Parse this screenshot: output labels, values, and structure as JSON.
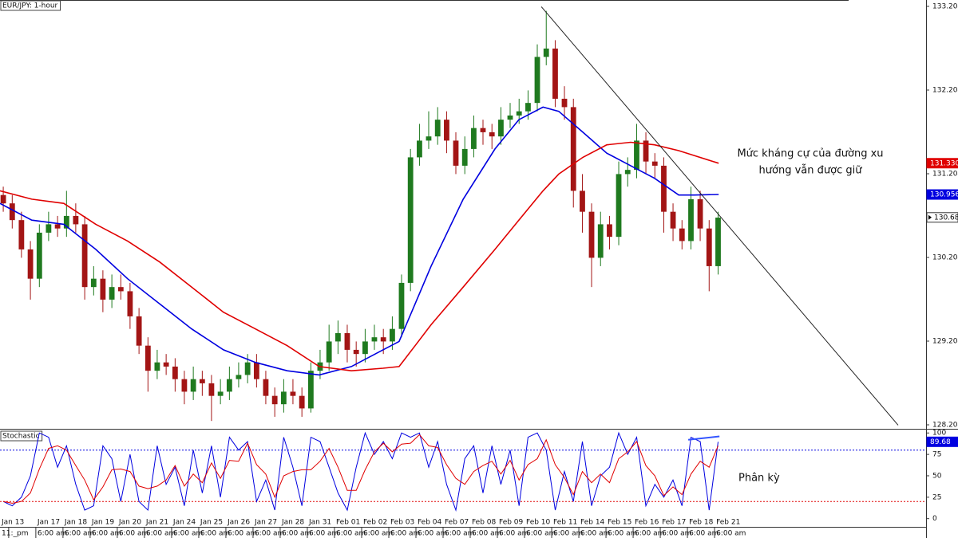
{
  "chart_data": [
    {
      "type": "candlestick",
      "title": "EUR/JPY: 1-hour",
      "x": [
        -0.2,
        0.13,
        0.47,
        0.8,
        1.13,
        1.47,
        1.8,
        2.13,
        2.47,
        2.8,
        3.13,
        3.47,
        3.8,
        4.13,
        4.47,
        4.8,
        5.13,
        5.47,
        5.8,
        6.13,
        6.47,
        6.8,
        7.13,
        7.47,
        7.8,
        8.13,
        8.47,
        8.8,
        9.13,
        9.47,
        9.8,
        10.13,
        10.47,
        10.8,
        11.13,
        11.47,
        11.8,
        12.13,
        12.47,
        12.8,
        13.13,
        13.47,
        13.8,
        14.13,
        14.47,
        14.8,
        15.13,
        15.47,
        15.8,
        16.13,
        16.47,
        16.8,
        17.13,
        17.47,
        17.8,
        18.13,
        18.47,
        18.8,
        19.13,
        19.47,
        19.8,
        20.13,
        20.47,
        20.8,
        21.13,
        21.47,
        21.8,
        22.13,
        22.47,
        22.8,
        23.13,
        23.47,
        23.8,
        24.13,
        24.47,
        24.8,
        25.13,
        25.47,
        25.8,
        26.13
      ],
      "open": [
        130.95,
        130.85,
        130.65,
        130.3,
        129.95,
        130.5,
        130.6,
        130.55,
        130.7,
        130.6,
        129.85,
        129.95,
        129.7,
        129.85,
        129.8,
        129.5,
        129.15,
        128.85,
        128.95,
        128.9,
        128.75,
        128.6,
        128.75,
        128.7,
        128.55,
        128.6,
        128.75,
        128.8,
        128.95,
        128.75,
        128.55,
        128.45,
        128.6,
        128.55,
        128.4,
        128.85,
        128.95,
        129.2,
        129.3,
        129.1,
        129.05,
        129.2,
        129.25,
        129.2,
        129.35,
        129.9,
        131.4,
        131.6,
        131.65,
        131.85,
        131.6,
        131.3,
        131.5,
        131.75,
        131.7,
        131.65,
        131.85,
        131.9,
        131.95,
        132.05,
        132.6,
        132.7,
        132.1,
        132.0,
        131.0,
        130.75,
        130.2,
        130.6,
        130.45,
        131.2,
        131.25,
        131.6,
        131.35,
        131.3,
        130.75,
        130.55,
        130.4,
        130.9,
        130.55,
        130.1
      ],
      "high": [
        131.05,
        130.95,
        130.75,
        130.4,
        130.6,
        130.75,
        130.7,
        131.0,
        130.85,
        130.7,
        130.1,
        130.05,
        130.0,
        130.0,
        129.9,
        129.6,
        129.25,
        129.1,
        129.05,
        129.0,
        128.85,
        128.9,
        128.85,
        128.8,
        128.75,
        128.9,
        128.95,
        129.05,
        129.05,
        128.85,
        128.65,
        128.75,
        128.75,
        128.65,
        128.95,
        129.1,
        129.4,
        129.45,
        129.4,
        129.2,
        129.35,
        129.4,
        129.35,
        129.5,
        130.0,
        131.5,
        131.8,
        131.95,
        132.0,
        131.95,
        131.7,
        131.65,
        131.9,
        131.85,
        131.8,
        132.0,
        132.05,
        132.1,
        132.2,
        132.75,
        133.15,
        132.8,
        132.25,
        132.1,
        131.2,
        130.85,
        130.75,
        130.7,
        131.35,
        131.4,
        131.8,
        131.7,
        131.45,
        131.4,
        130.85,
        130.65,
        131.05,
        131.0,
        130.65,
        130.75
      ],
      "low": [
        130.75,
        130.55,
        130.2,
        129.7,
        129.85,
        130.4,
        130.45,
        130.45,
        130.5,
        129.7,
        129.75,
        129.55,
        129.6,
        129.7,
        129.35,
        129.05,
        128.6,
        128.75,
        128.8,
        128.6,
        128.45,
        128.5,
        128.55,
        128.25,
        128.45,
        128.5,
        128.65,
        128.7,
        128.65,
        128.45,
        128.3,
        128.35,
        128.45,
        128.3,
        128.35,
        128.75,
        128.85,
        129.05,
        128.95,
        128.9,
        128.95,
        129.1,
        129.05,
        129.1,
        129.25,
        129.8,
        131.3,
        131.5,
        131.55,
        131.45,
        131.2,
        131.2,
        131.4,
        131.55,
        131.5,
        131.55,
        131.75,
        131.8,
        131.85,
        131.95,
        132.5,
        132.0,
        131.85,
        130.8,
        130.5,
        129.85,
        130.1,
        130.3,
        130.35,
        131.05,
        131.15,
        131.2,
        131.15,
        130.5,
        130.4,
        130.3,
        130.3,
        130.4,
        129.8,
        130.0
      ],
      "close": [
        130.85,
        130.65,
        130.3,
        129.95,
        130.5,
        130.6,
        130.55,
        130.7,
        130.6,
        129.85,
        129.95,
        129.7,
        129.85,
        129.8,
        129.5,
        129.15,
        128.85,
        128.95,
        128.9,
        128.75,
        128.6,
        128.75,
        128.7,
        128.55,
        128.6,
        128.75,
        128.8,
        128.95,
        128.75,
        128.55,
        128.45,
        128.6,
        128.55,
        128.4,
        128.85,
        128.95,
        129.2,
        129.3,
        129.1,
        129.05,
        129.2,
        129.25,
        129.2,
        129.35,
        129.9,
        131.4,
        131.6,
        131.65,
        131.85,
        131.6,
        131.3,
        131.5,
        131.75,
        131.7,
        131.65,
        131.85,
        131.9,
        131.95,
        132.05,
        132.6,
        132.7,
        132.1,
        132.0,
        131.0,
        130.75,
        130.2,
        130.6,
        130.45,
        131.2,
        131.25,
        131.6,
        131.35,
        131.3,
        130.75,
        130.55,
        130.4,
        130.9,
        130.55,
        130.1,
        130.68
      ],
      "up_color": "#1f7a1f",
      "down_color": "#a31515",
      "overlays": [
        {
          "color": "#0000e0",
          "x": [
            -0.32,
            0.85,
            2.03,
            3.21,
            4.38,
            5.56,
            6.74,
            7.91,
            9.09,
            10.26,
            11.44,
            12.62,
            13.79,
            14.38,
            14.97,
            15.56,
            16.74,
            17.91,
            18.79,
            19.68,
            20.26,
            21.15,
            22.03,
            22.91,
            23.79,
            24.68,
            25.26,
            26.15
          ],
          "values": [
            130.85,
            130.65,
            130.6,
            130.3,
            129.95,
            129.65,
            129.35,
            129.1,
            128.95,
            128.85,
            128.8,
            128.9,
            129.1,
            129.2,
            129.65,
            130.1,
            130.9,
            131.5,
            131.85,
            132.0,
            131.95,
            131.7,
            131.45,
            131.3,
            131.15,
            130.95,
            130.95,
            130.956
          ]
        },
        {
          "color": "#e00000",
          "x": [
            -0.32,
            0.85,
            2.03,
            3.21,
            4.38,
            5.56,
            6.74,
            7.91,
            9.09,
            10.26,
            11.44,
            12.62,
            13.79,
            14.38,
            14.97,
            15.56,
            16.74,
            17.91,
            18.79,
            19.68,
            20.26,
            21.15,
            22.03,
            22.91,
            23.79,
            24.68,
            25.26,
            26.15
          ],
          "values": [
            131.0,
            130.9,
            130.85,
            130.6,
            130.4,
            130.15,
            129.85,
            129.55,
            129.35,
            129.15,
            128.9,
            128.85,
            128.88,
            128.9,
            129.15,
            129.4,
            129.85,
            130.3,
            130.65,
            131.0,
            131.2,
            131.4,
            131.55,
            131.58,
            131.55,
            131.48,
            131.42,
            131.33
          ]
        }
      ],
      "price_labels": [
        {
          "value": 131.33,
          "label": "131.330",
          "color": "#e00000"
        },
        {
          "value": 130.956,
          "label": "130.956",
          "color": "#0000e0"
        },
        {
          "value": 130.682,
          "label": "130.682",
          "color": "#000000"
        }
      ],
      "trendline": {
        "x": [
          19.62,
          32.76
        ],
        "y": [
          133.2,
          128.2
        ],
        "color": "#222222"
      },
      "annotation": [
        "Mức kháng cự của đường xu",
        "hướng vẫn được giữ"
      ],
      "xlim": [
        -0.32,
        33.79
      ],
      "ylim": [
        128.185,
        133.28
      ],
      "yticks": [
        128.204,
        129.204,
        130.204,
        131.204,
        132.204,
        133.204
      ]
    },
    {
      "type": "line",
      "title": "Stochastic",
      "x": [
        -0.2,
        0.13,
        0.47,
        0.8,
        1.13,
        1.47,
        1.8,
        2.13,
        2.47,
        2.8,
        3.13,
        3.47,
        3.8,
        4.13,
        4.47,
        4.8,
        5.13,
        5.47,
        5.8,
        6.13,
        6.47,
        6.8,
        7.13,
        7.47,
        7.8,
        8.13,
        8.47,
        8.8,
        9.13,
        9.47,
        9.8,
        10.13,
        10.47,
        10.8,
        11.13,
        11.47,
        11.8,
        12.13,
        12.47,
        12.8,
        13.13,
        13.47,
        13.8,
        14.13,
        14.47,
        14.8,
        15.13,
        15.47,
        15.8,
        16.13,
        16.47,
        16.8,
        17.13,
        17.47,
        17.8,
        18.13,
        18.47,
        18.8,
        19.13,
        19.47,
        19.8,
        20.13,
        20.47,
        20.8,
        21.13,
        21.47,
        21.8,
        22.13,
        22.47,
        22.8,
        23.13,
        23.47,
        23.8,
        24.13,
        24.47,
        24.8,
        25.13,
        25.47,
        25.8,
        26.13
      ],
      "series": [
        {
          "color": "#0000e0",
          "values": [
            20,
            15,
            25,
            50,
            100,
            95,
            60,
            85,
            40,
            10,
            15,
            85,
            70,
            20,
            75,
            20,
            10,
            85,
            40,
            60,
            15,
            80,
            30,
            85,
            25,
            95,
            80,
            90,
            20,
            45,
            10,
            95,
            60,
            15,
            95,
            90,
            60,
            30,
            10,
            60,
            100,
            75,
            90,
            70,
            100,
            95,
            100,
            60,
            90,
            40,
            10,
            70,
            85,
            30,
            85,
            40,
            80,
            15,
            95,
            100,
            80,
            10,
            55,
            20,
            90,
            15,
            50,
            60,
            100,
            75,
            95,
            15,
            40,
            25,
            45,
            15,
            95,
            90,
            10,
            89.68
          ]
        },
        {
          "color": "#e00000",
          "values": [
            20,
            18,
            20,
            30,
            58,
            82,
            85,
            80,
            62,
            45,
            22,
            37,
            57,
            58,
            55,
            38,
            35,
            38,
            45,
            62,
            38,
            52,
            42,
            65,
            47,
            68,
            67,
            88,
            63,
            52,
            25,
            50,
            55,
            57,
            57,
            67,
            82,
            60,
            33,
            33,
            57,
            78,
            88,
            78,
            87,
            88,
            98,
            85,
            83,
            63,
            47,
            40,
            55,
            62,
            67,
            52,
            68,
            45,
            63,
            70,
            92,
            63,
            48,
            28,
            55,
            42,
            52,
            42,
            70,
            78,
            90,
            62,
            50,
            27,
            37,
            28,
            52,
            67,
            60,
            85
          ]
        }
      ],
      "levels": [
        {
          "value": 80,
          "color": "#0000e0"
        },
        {
          "value": 20,
          "color": "#e00000"
        }
      ],
      "price_labels": [
        {
          "value": 89.68,
          "color": "#0000e0"
        }
      ],
      "divergence": {
        "x": [
          25.03,
          26.18
        ],
        "y": [
          92,
          96
        ],
        "color": "#3355ff"
      },
      "annotation": "Phân kỳ",
      "xlim": [
        -0.32,
        33.79
      ],
      "ylim": [
        -4,
        103
      ],
      "yticks": [
        0,
        25,
        50,
        75,
        100
      ],
      "xticks": [
        {
          "value": 0,
          "label": "Jan 13"
        },
        {
          "value": 1,
          "label": "Jan 17"
        },
        {
          "value": 2,
          "label": "Jan 18"
        },
        {
          "value": 3,
          "label": "Jan 19"
        },
        {
          "value": 4,
          "label": "Jan 20"
        },
        {
          "value": 5,
          "label": "Jan 21"
        },
        {
          "value": 6,
          "label": "Jan 24"
        },
        {
          "value": 7,
          "label": "Jan 25"
        },
        {
          "value": 8,
          "label": "Jan 26"
        },
        {
          "value": 9,
          "label": "Jan 27"
        },
        {
          "value": 10,
          "label": "Jan 28"
        },
        {
          "value": 11,
          "label": "Jan 31"
        },
        {
          "value": 12,
          "label": "Feb 01"
        },
        {
          "value": 13,
          "label": "Feb 02"
        },
        {
          "value": 14,
          "label": "Feb 03"
        },
        {
          "value": 15,
          "label": "Feb 04"
        },
        {
          "value": 16,
          "label": "Feb 07"
        },
        {
          "value": 17,
          "label": "Feb 08"
        },
        {
          "value": 18,
          "label": "Feb 09"
        },
        {
          "value": 19,
          "label": "Feb 10"
        },
        {
          "value": 20,
          "label": "Feb 11"
        },
        {
          "value": 21,
          "label": "Feb 14"
        },
        {
          "value": 22,
          "label": "Feb 15"
        },
        {
          "value": 23,
          "label": "Feb 16"
        },
        {
          "value": 24,
          "label": "Feb 17"
        },
        {
          "value": 25,
          "label": "Feb 18"
        },
        {
          "value": 26,
          "label": "Feb 21"
        }
      ],
      "xtick_sublabels": [
        "11:_pm",
        "6:00 am",
        "6:00 am",
        "6:00 am",
        "6:00 am",
        "6:00 am",
        "6:00 am",
        "6:00 am",
        "6:00 am",
        "6:00 am",
        "6:00 am",
        "6:00 am",
        "6:00 am",
        "6:00 am",
        "6:00 am",
        "6:00 am",
        "6:00 am",
        "6:00 am",
        "6:00 am",
        "6:00 am",
        "6:00 am",
        "6:00 am",
        "6:00 am",
        "6:00 am",
        "6:00 am",
        "6:00 am",
        "6:00 am"
      ]
    }
  ]
}
